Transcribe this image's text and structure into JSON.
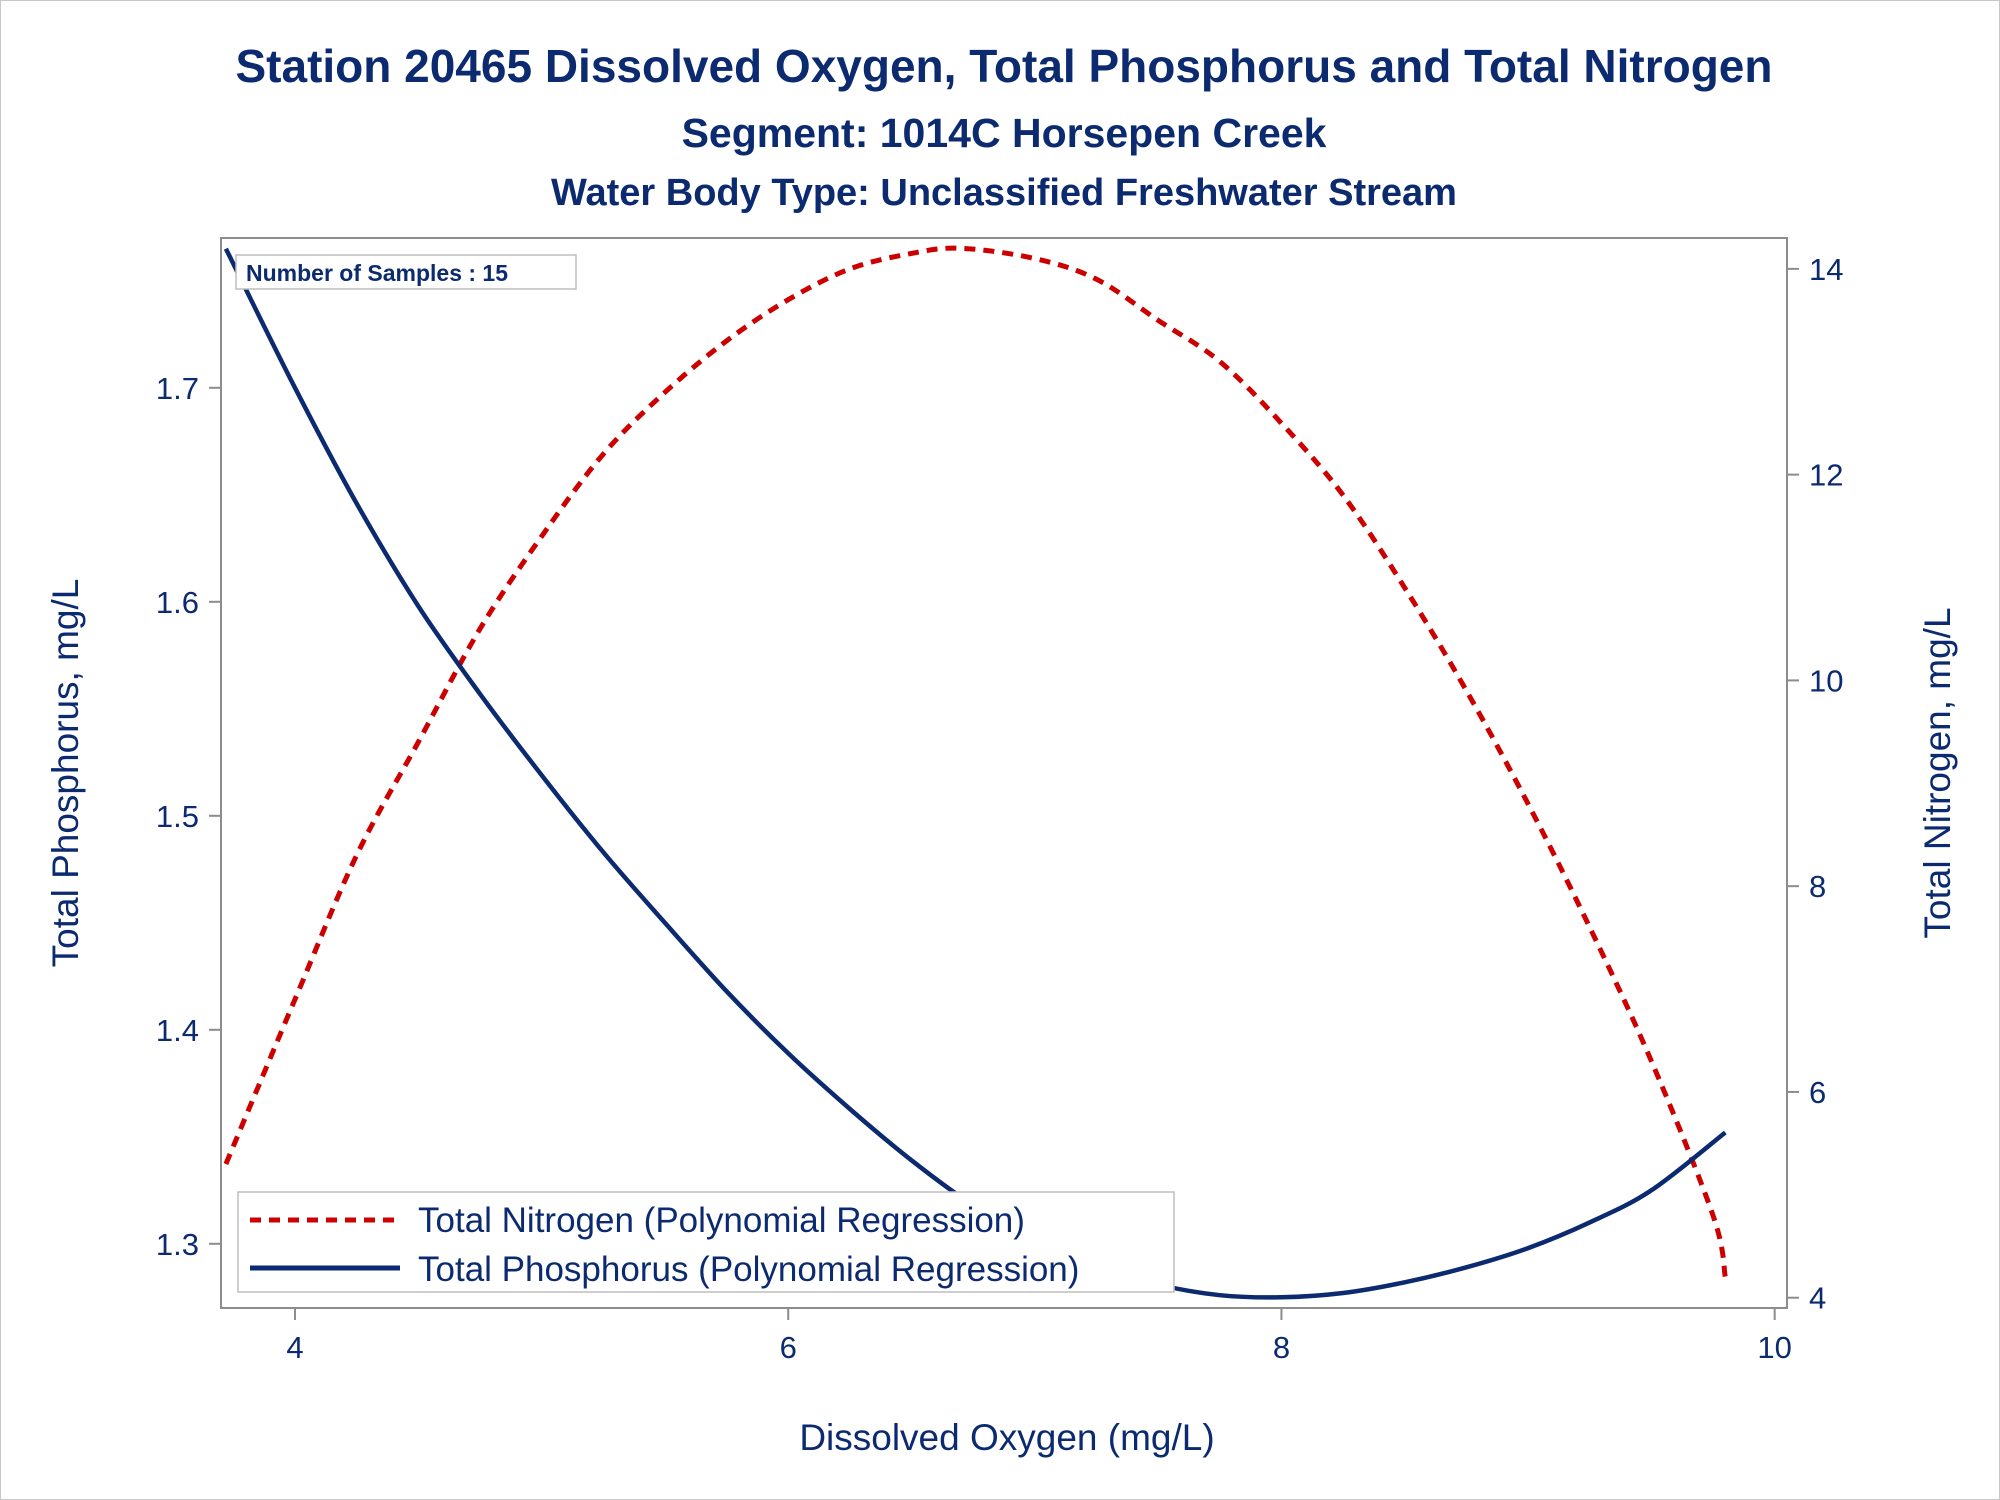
{
  "chart_data": {
    "type": "line",
    "title": "Station 20465  Dissolved Oxygen, Total Phosphorus and Total Nitrogen",
    "subtitle": "Segment: 1014C  Horsepen Creek",
    "subtitle2": "Water Body Type: Unclassified Freshwater Stream",
    "xlabel": "Dissolved Oxygen (mg/L)",
    "ylabel_left": "Total Phosphorus, mg/L",
    "ylabel_right": "Total Nitrogen, mg/L",
    "xlim": [
      3.7,
      10.05
    ],
    "ylim_left": [
      1.27,
      1.77
    ],
    "ylim_right": [
      3.9,
      14.3
    ],
    "x_ticks": [
      "4",
      "6",
      "8",
      "10"
    ],
    "y_left_ticks": [
      "1.3",
      "1.4",
      "1.5",
      "1.6",
      "1.7"
    ],
    "y_right_ticks": [
      "4",
      "6",
      "8",
      "10",
      "12",
      "14"
    ],
    "grid": false,
    "legend_position": "bottom-left",
    "annotation": "Number of Samples : 15",
    "series": [
      {
        "name": "Total Nitrogen (Polynomial Regression)",
        "axis": "right",
        "style": "dashed",
        "color": "#cc0000",
        "x": [
          3.72,
          4.0,
          4.25,
          4.5,
          4.75,
          5.0,
          5.25,
          5.5,
          5.75,
          6.0,
          6.25,
          6.5,
          6.7,
          7.0,
          7.25,
          7.5,
          7.75,
          8.0,
          8.25,
          8.5,
          8.75,
          9.0,
          9.25,
          9.5,
          9.75,
          9.8
        ],
        "values": [
          5.3,
          6.9,
          8.3,
          9.4,
          10.5,
          11.4,
          12.2,
          12.8,
          13.3,
          13.7,
          14.0,
          14.15,
          14.2,
          14.1,
          13.9,
          13.5,
          13.1,
          12.5,
          11.8,
          10.9,
          9.9,
          8.8,
          7.6,
          6.3,
          4.8,
          4.2
        ]
      },
      {
        "name": "Total Phosphorus (Polynomial Regression)",
        "axis": "left",
        "style": "solid",
        "color": "#0b2a6f",
        "x": [
          3.72,
          4.0,
          4.25,
          4.5,
          4.75,
          5.0,
          5.25,
          5.5,
          5.75,
          6.0,
          6.25,
          6.5,
          6.75,
          7.0,
          7.25,
          7.5,
          7.75,
          8.0,
          8.25,
          8.5,
          8.75,
          9.0,
          9.25,
          9.5,
          9.8
        ],
        "values": [
          1.765,
          1.7,
          1.646,
          1.598,
          1.557,
          1.519,
          1.483,
          1.45,
          1.418,
          1.389,
          1.363,
          1.339,
          1.318,
          1.302,
          1.29,
          1.281,
          1.276,
          1.275,
          1.277,
          1.282,
          1.289,
          1.298,
          1.31,
          1.325,
          1.352
        ]
      }
    ]
  }
}
